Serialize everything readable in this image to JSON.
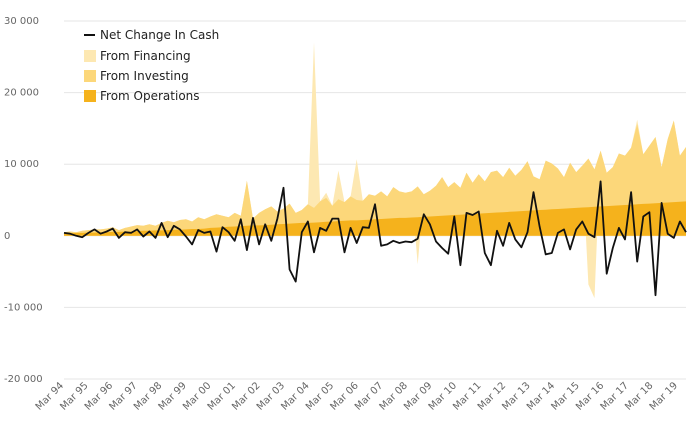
{
  "chart_data": {
    "type": "area",
    "title": "",
    "xlabel": "",
    "ylabel": "",
    "ylim": [
      -20000,
      30000
    ],
    "yticks": [
      30000,
      20000,
      10000,
      0,
      -10000,
      -20000
    ],
    "ytick_labels": [
      "30 000",
      "20 000",
      "10 000",
      "0",
      "-10 000",
      "-20 000"
    ],
    "xtick_labels": [
      "Mar 94",
      "Mar 95",
      "Mar 96",
      "Mar 97",
      "Mar 98",
      "Mar 99",
      "Mar 00",
      "Mar 01",
      "Mar 02",
      "Mar 03",
      "Mar 04",
      "Mar 05",
      "Mar 06",
      "Mar 07",
      "Mar 08",
      "Mar 09",
      "Mar 10",
      "Mar 11",
      "Mar 12",
      "Mar 13",
      "Mar 14",
      "Mar 15",
      "Mar 16",
      "Mar 17",
      "Mar 18",
      "Mar 19"
    ],
    "grid": true,
    "legend_position": "top-left",
    "colors": {
      "financing": "#fde8b2",
      "investing": "#fcd77a",
      "operations": "#f5b21c",
      "net_change": "#111111",
      "grid": "#e6e6e6"
    },
    "series": [
      {
        "name": "Net Change In Cash",
        "kind": "line"
      },
      {
        "name": "From Financing",
        "kind": "area"
      },
      {
        "name": "From Investing",
        "kind": "area"
      },
      {
        "name": "From Operations",
        "kind": "area"
      }
    ],
    "quarters": "Mar 94 to Jun 19",
    "operations": [
      300,
      350,
      400,
      400,
      450,
      450,
      500,
      500,
      550,
      550,
      600,
      600,
      650,
      700,
      700,
      750,
      750,
      800,
      850,
      850,
      900,
      950,
      950,
      1000,
      1100,
      1150,
      1200,
      1250,
      1300,
      1350,
      1400,
      1450,
      1450,
      1500,
      1550,
      1600,
      1650,
      1700,
      1750,
      1800,
      1800,
      1850,
      1900,
      1950,
      2000,
      2050,
      2100,
      2150,
      2150,
      2200,
      2250,
      2300,
      2350,
      2400,
      2450,
      2500,
      2500,
      2550,
      2600,
      2650,
      2700,
      2750,
      2800,
      2850,
      2900,
      2950,
      3000,
      3050,
      3100,
      3150,
      3200,
      3250,
      3300,
      3350,
      3400,
      3450,
      3500,
      3550,
      3600,
      3650,
      3700,
      3750,
      3800,
      3850,
      3900,
      3950,
      4000,
      4050,
      4100,
      4150,
      4200,
      4250,
      4300,
      4350,
      4400,
      4450,
      4500,
      4550,
      4600,
      4650,
      4700,
      4750,
      4800
    ],
    "investing": [
      500,
      600,
      500,
      700,
      800,
      900,
      900,
      1000,
      1200,
      800,
      1100,
      1300,
      1500,
      1400,
      1600,
      1400,
      1800,
      2100,
      1900,
      2200,
      2300,
      2000,
      2600,
      2300,
      2700,
      3000,
      2800,
      2600,
      3200,
      2800,
      7700,
      2400,
      3200,
      3700,
      4100,
      3400,
      3800,
      4500,
      3200,
      3600,
      4400,
      3900,
      4800,
      5300,
      4200,
      5100,
      4700,
      5500,
      5000,
      4900,
      5800,
      5600,
      6200,
      5500,
      6800,
      6200,
      6000,
      6200,
      6900,
      5800,
      6300,
      7000,
      8200,
      6800,
      7500,
      6700,
      8800,
      7400,
      8600,
      7600,
      8900,
      9100,
      8200,
      9500,
      8400,
      9200,
      10400,
      8300,
      7900,
      10500,
      10100,
      9400,
      8200,
      10200,
      8900,
      9800,
      10800,
      9300,
      11900,
      8800,
      9600,
      11500,
      11200,
      12300,
      15600,
      11400,
      12600,
      13800,
      9600,
      13500,
      16100,
      11200,
      12400
    ],
    "financing": [
      0,
      0,
      0,
      0,
      0,
      0,
      0,
      0,
      0,
      0,
      0,
      0,
      0,
      0,
      0,
      0,
      0,
      0,
      0,
      0,
      0,
      0,
      0,
      0,
      0,
      0,
      0,
      0,
      0,
      0,
      0,
      0,
      0,
      0,
      0,
      0,
      0,
      0,
      0,
      0,
      0,
      27000,
      0,
      6000,
      0,
      9100,
      0,
      0,
      10700,
      0,
      0,
      0,
      0,
      0,
      0,
      0,
      0,
      0,
      -4000,
      0,
      0,
      0,
      0,
      0,
      0,
      0,
      0,
      0,
      0,
      0,
      0,
      0,
      0,
      0,
      0,
      0,
      0,
      0,
      0,
      0,
      0,
      0,
      0,
      0,
      0,
      0,
      -6800,
      -8700,
      0,
      0,
      0,
      0,
      0,
      0,
      16200,
      0,
      0,
      0,
      0,
      0,
      0,
      0,
      0
    ],
    "net_change": [
      400,
      300,
      0,
      -200,
      400,
      900,
      300,
      600,
      1000,
      -300,
      500,
      400,
      900,
      -100,
      600,
      -300,
      1800,
      -200,
      1400,
      900,
      -100,
      -1200,
      800,
      400,
      600,
      -2200,
      1200,
      500,
      -700,
      2300,
      -2000,
      2500,
      -1200,
      1600,
      -700,
      2400,
      6700,
      -4700,
      -6400,
      500,
      2000,
      -2300,
      1100,
      700,
      2400,
      2400,
      -2300,
      1100,
      -1000,
      1200,
      1100,
      4400,
      -1400,
      -1200,
      -700,
      -1000,
      -800,
      -900,
      -400,
      3000,
      1600,
      -800,
      -1700,
      -2500,
      2700,
      -4100,
      3200,
      2900,
      3400,
      -2400,
      -4100,
      700,
      -1400,
      1800,
      -500,
      -1600,
      500,
      6100,
      1300,
      -2600,
      -2400,
      400,
      900,
      -1900,
      900,
      2000,
      300,
      -200,
      7600,
      -5300,
      -1700,
      1100,
      -500,
      6100,
      -3600,
      2700,
      3300,
      -8300,
      4600,
      300,
      -300,
      2000,
      500
    ]
  }
}
